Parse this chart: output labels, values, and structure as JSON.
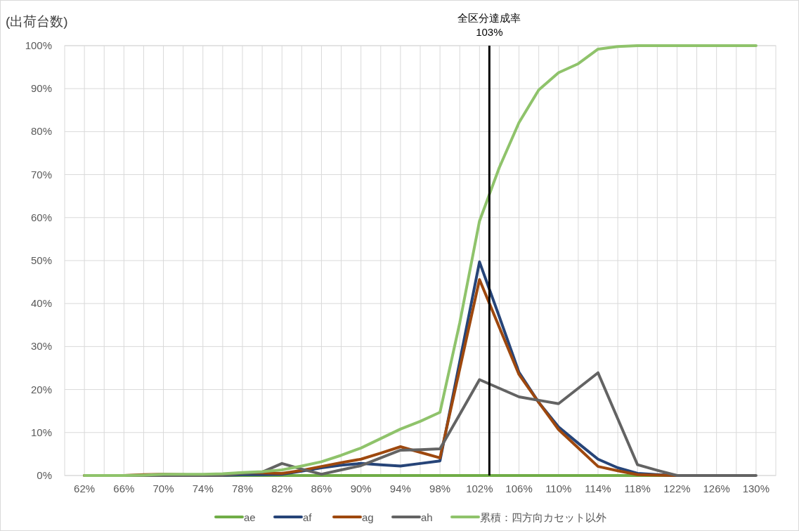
{
  "chart_data": {
    "type": "line",
    "ylabel": "(出荷台数)",
    "x": [
      62,
      64,
      66,
      68,
      70,
      72,
      74,
      76,
      78,
      80,
      82,
      84,
      86,
      88,
      90,
      92,
      94,
      96,
      98,
      100,
      102,
      104,
      106,
      108,
      110,
      112,
      114,
      116,
      118,
      120,
      122,
      124,
      126,
      128,
      130
    ],
    "series": [
      {
        "name": "ae",
        "color": "#70ad47",
        "values": [
          0,
          0,
          0,
          0,
          0,
          0,
          0,
          0,
          0,
          0,
          0,
          0,
          0,
          0,
          0,
          0,
          0,
          0,
          0,
          0,
          0,
          0,
          0,
          0,
          0,
          0,
          0,
          0,
          0,
          0,
          0,
          null,
          null,
          null,
          null
        ]
      },
      {
        "name": "af",
        "color": "#264478",
        "values": [
          null,
          null,
          null,
          null,
          null,
          null,
          0,
          0,
          0.2,
          0.2,
          0.3,
          1.0,
          1.8,
          2.4,
          2.8,
          2.5,
          2.2,
          2.8,
          3.4,
          26.5,
          49.7,
          37,
          24,
          17,
          11.3,
          7.5,
          3.8,
          1.8,
          0.5,
          0.2,
          0,
          null,
          null,
          null,
          null
        ]
      },
      {
        "name": "ag",
        "color": "#9e480e",
        "values": [
          0,
          0,
          0,
          0.2,
          0.3,
          0.2,
          0,
          0.2,
          0.6,
          0.6,
          0.5,
          1.2,
          2.1,
          3.0,
          3.8,
          5.2,
          6.7,
          5.4,
          4.1,
          24.8,
          45.6,
          34.5,
          23.5,
          17,
          10.7,
          6.4,
          2.1,
          1.1,
          0.2,
          0.1,
          0,
          0,
          null,
          null,
          null
        ]
      },
      {
        "name": "ah",
        "color": "#636363",
        "values": [
          null,
          null,
          0,
          0,
          0,
          0,
          0,
          0,
          0.5,
          0.8,
          2.8,
          1.5,
          0.3,
          1.3,
          2.3,
          4.1,
          5.9,
          6.0,
          6.2,
          14.2,
          22.3,
          20.3,
          18.3,
          17.5,
          16.7,
          20.3,
          23.9,
          13.2,
          2.5,
          1.2,
          0,
          0,
          0,
          0,
          0
        ]
      },
      {
        "name": "累積：四方向カセット以外",
        "color": "#8fc36b",
        "values": [
          0,
          0,
          0,
          0.1,
          0.3,
          0.3,
          0.3,
          0.4,
          0.7,
          0.9,
          1.3,
          2.2,
          3.2,
          4.7,
          6.4,
          8.6,
          10.8,
          12.6,
          14.7,
          35.5,
          59.2,
          71.6,
          82.1,
          89.7,
          93.7,
          95.8,
          99.2,
          99.8,
          100,
          100,
          100,
          100,
          100,
          100,
          100
        ]
      }
    ],
    "xlim": [
      60,
      132
    ],
    "xticks": [
      {
        "value": 62,
        "label": "62%"
      },
      {
        "value": 64,
        "label": null
      },
      {
        "value": 66,
        "label": "66%"
      },
      {
        "value": 68,
        "label": null
      },
      {
        "value": 70,
        "label": "70%"
      },
      {
        "value": 72,
        "label": null
      },
      {
        "value": 74,
        "label": "74%"
      },
      {
        "value": 76,
        "label": null
      },
      {
        "value": 78,
        "label": "78%"
      },
      {
        "value": 80,
        "label": null
      },
      {
        "value": 82,
        "label": "82%"
      },
      {
        "value": 84,
        "label": null
      },
      {
        "value": 86,
        "label": "86%"
      },
      {
        "value": 88,
        "label": null
      },
      {
        "value": 90,
        "label": "90%"
      },
      {
        "value": 92,
        "label": null
      },
      {
        "value": 94,
        "label": "94%"
      },
      {
        "value": 96,
        "label": null
      },
      {
        "value": 98,
        "label": "98%"
      },
      {
        "value": 100,
        "label": null
      },
      {
        "value": 102,
        "label": "102%"
      },
      {
        "value": 104,
        "label": null
      },
      {
        "value": 106,
        "label": "106%"
      },
      {
        "value": 108,
        "label": null
      },
      {
        "value": 110,
        "label": "110%"
      },
      {
        "value": 112,
        "label": null
      },
      {
        "value": 114,
        "label": "114%"
      },
      {
        "value": 116,
        "label": null
      },
      {
        "value": 118,
        "label": "118%"
      },
      {
        "value": 120,
        "label": null
      },
      {
        "value": 122,
        "label": "122%"
      },
      {
        "value": 124,
        "label": null
      },
      {
        "value": 126,
        "label": "126%"
      },
      {
        "value": 128,
        "label": null
      },
      {
        "value": 130,
        "label": "130%"
      }
    ],
    "ylim": [
      0,
      100
    ],
    "yticks": [
      {
        "value": 0,
        "label": "0%"
      },
      {
        "value": 10,
        "label": "10%"
      },
      {
        "value": 20,
        "label": "20%"
      },
      {
        "value": 30,
        "label": "30%"
      },
      {
        "value": 40,
        "label": "40%"
      },
      {
        "value": 50,
        "label": "50%"
      },
      {
        "value": 60,
        "label": "60%"
      },
      {
        "value": 70,
        "label": "70%"
      },
      {
        "value": 80,
        "label": "80%"
      },
      {
        "value": 90,
        "label": "90%"
      },
      {
        "value": 100,
        "label": "100%"
      }
    ],
    "ref_lines": [
      {
        "axis": "x",
        "value": 103,
        "label": "全区分達成率\n103%",
        "color": "#000000"
      }
    ],
    "grid": true,
    "legend": "bottom",
    "marker": "none",
    "line_style": "solid"
  }
}
